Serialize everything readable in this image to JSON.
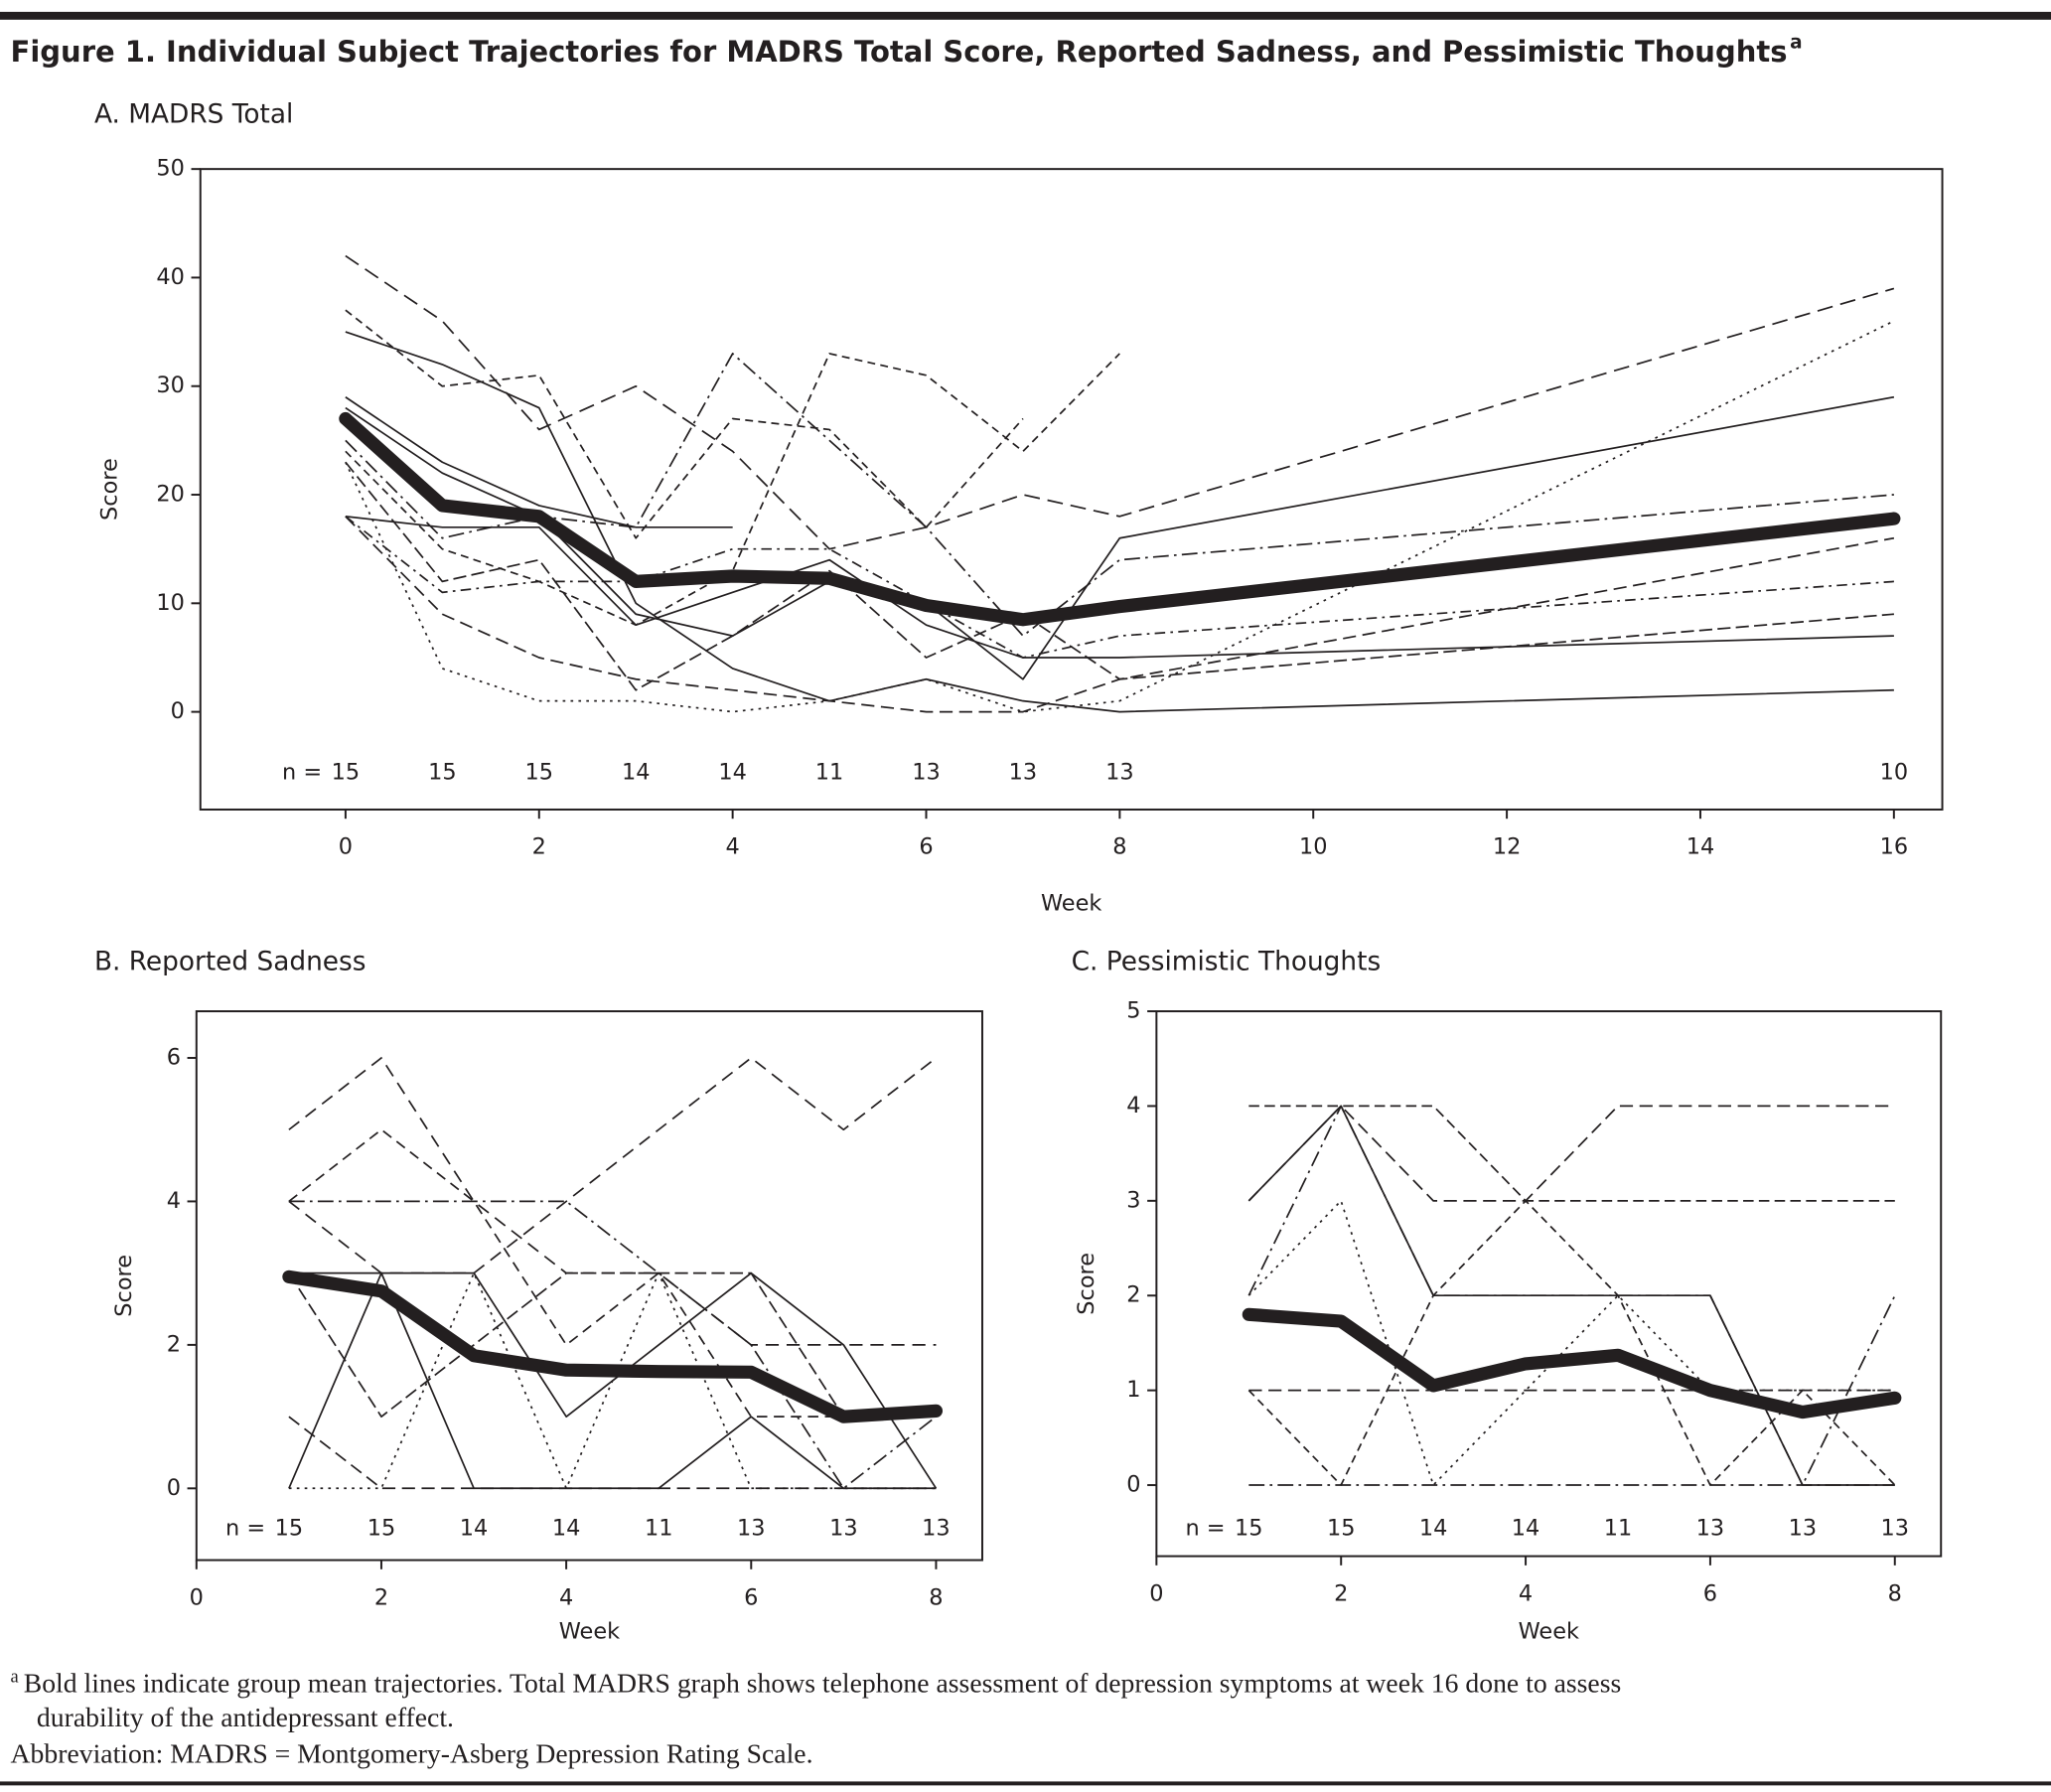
{
  "title": "Figure 1. Individual Subject Trajectories for MADRS Total Score, Reported Sadness, and Pessimistic Thoughts",
  "title_mark": "a",
  "footnote_mark": "a",
  "footnote": [
    "Bold lines indicate group mean trajectories. Total MADRS graph shows telephone assessment of depression symptoms at week 16 done to assess",
    "durability of the antidepressant effect."
  ],
  "abbreviation": "Abbreviation: MADRS = Montgomery-Asberg Depression Rating Scale.",
  "chart_data": [
    {
      "type": "line",
      "subtitle": "A. MADRS Total",
      "xlabel": "Week",
      "ylabel": "Score",
      "x": [
        0,
        1,
        2,
        3,
        4,
        5,
        6,
        7,
        8,
        16
      ],
      "xlim": [
        -1.5,
        16.5
      ],
      "ylim": [
        -9,
        50
      ],
      "xticks": [
        0,
        2,
        4,
        6,
        8,
        10,
        12,
        14,
        16
      ],
      "yticks": [
        0,
        10,
        20,
        30,
        40,
        50
      ],
      "n_label": "n =",
      "n": [
        15,
        15,
        15,
        14,
        14,
        11,
        13,
        13,
        13,
        10
      ],
      "series": [
        {
          "color": "#231f20",
          "dash": "12 6",
          "values": [
            42,
            36,
            26,
            30,
            24,
            15,
            17,
            20,
            18,
            39
          ]
        },
        {
          "color": "#231f20",
          "dash": "6 4",
          "values": [
            37,
            30,
            31,
            16,
            27,
            26,
            17,
            27,
            null,
            null
          ]
        },
        {
          "color": "#231f20",
          "dash": "none",
          "values": [
            35,
            32,
            28,
            10,
            4,
            1,
            3,
            1,
            0,
            2
          ]
        },
        {
          "color": "#231f20",
          "dash": "none",
          "values": [
            29,
            23,
            19,
            17,
            17,
            null,
            null,
            null,
            null,
            null
          ]
        },
        {
          "color": "#231f20",
          "dash": "12 4 2 4",
          "values": [
            25,
            16,
            18,
            17,
            33,
            25,
            17,
            7,
            14,
            20
          ]
        },
        {
          "color": "#231f20",
          "dash": "2 4",
          "values": [
            23,
            4,
            1,
            1,
            0,
            1,
            3,
            0,
            1,
            36
          ]
        },
        {
          "color": "#231f20",
          "dash": "10 5",
          "values": [
            18,
            9,
            5,
            3,
            2,
            1,
            0,
            0,
            3,
            16
          ]
        },
        {
          "color": "#231f20",
          "dash": "none",
          "values": [
            28,
            22,
            18,
            9,
            7,
            12,
            10,
            3,
            16,
            29
          ]
        },
        {
          "color": "#231f20",
          "dash": "8 4 2 4",
          "values": [
            18,
            11,
            12,
            12,
            15,
            15,
            10,
            5,
            7,
            12
          ]
        },
        {
          "color": "#231f20",
          "dash": "6 4",
          "values": [
            24,
            15,
            12,
            8,
            13,
            33,
            31,
            24,
            33,
            null
          ]
        },
        {
          "color": "#231f20",
          "dash": "none",
          "values": [
            18,
            17,
            17,
            8,
            11,
            14,
            8,
            5,
            5,
            7
          ]
        },
        {
          "color": "#231f20",
          "dash": "10 4",
          "values": [
            23,
            12,
            14,
            2,
            7,
            13,
            5,
            9,
            3,
            9
          ]
        },
        {
          "color": "#231f20",
          "dash": "none",
          "width": 10,
          "values": [
            27,
            19,
            18,
            12,
            12.5,
            12.3,
            9.8,
            8.5,
            9.7,
            17.8
          ]
        }
      ]
    },
    {
      "type": "line",
      "subtitle": "B. Reported Sadness",
      "xlabel": "Week",
      "ylabel": "Score",
      "x": [
        1,
        2,
        3,
        4,
        5,
        6,
        7,
        8
      ],
      "xlim": [
        0,
        8.5
      ],
      "ylim": [
        -1,
        6.65
      ],
      "xticks": [
        0,
        2,
        4,
        6,
        8
      ],
      "yticks": [
        0,
        2,
        4,
        6
      ],
      "n_label": "n =",
      "n": [
        15,
        15,
        14,
        14,
        11,
        13,
        13,
        13
      ],
      "series": [
        {
          "color": "#231f20",
          "dash": "10 6",
          "values": [
            5,
            6,
            4,
            3,
            3,
            2,
            2,
            2
          ]
        },
        {
          "color": "#231f20",
          "dash": "10 6",
          "values": [
            4,
            3,
            3,
            4,
            5,
            6,
            5,
            6
          ]
        },
        {
          "color": "#231f20",
          "dash": "8 5",
          "values": [
            4,
            5,
            4,
            2,
            3,
            1,
            1,
            1
          ]
        },
        {
          "color": "#231f20",
          "dash": "none",
          "values": [
            0,
            3,
            0,
            0,
            0,
            1,
            0,
            0
          ]
        },
        {
          "color": "#231f20",
          "dash": "12 4 2 4",
          "values": [
            4,
            4,
            4,
            4,
            3,
            2,
            0,
            1
          ]
        },
        {
          "color": "#231f20",
          "dash": "2 4",
          "values": [
            0,
            0,
            3,
            0,
            3,
            0,
            0,
            0
          ]
        },
        {
          "color": "#231f20",
          "dash": "10 5",
          "values": [
            1,
            0,
            0,
            0,
            0,
            0,
            0,
            0
          ]
        },
        {
          "color": "#231f20",
          "dash": "none",
          "values": [
            3,
            3,
            3,
            1,
            2,
            3,
            2,
            0
          ]
        },
        {
          "color": "#231f20",
          "dash": "10 4",
          "values": [
            3,
            1,
            2,
            3,
            3,
            3,
            1,
            1
          ]
        },
        {
          "color": "#231f20",
          "dash": "none",
          "width": 10,
          "values": [
            2.95,
            2.75,
            1.85,
            1.65,
            1.63,
            1.62,
            1.0,
            1.08
          ]
        }
      ]
    },
    {
      "type": "line",
      "subtitle": "C. Pessimistic Thoughts",
      "xlabel": "Week",
      "ylabel": "Score",
      "x": [
        1,
        2,
        3,
        4,
        5,
        6,
        7,
        8
      ],
      "xlim": [
        0,
        8.5
      ],
      "ylim": [
        -0.75,
        5
      ],
      "xticks": [
        0,
        2,
        4,
        6,
        8
      ],
      "yticks": [
        0,
        1,
        2,
        3,
        4,
        5
      ],
      "n_label": "n =",
      "n": [
        15,
        15,
        14,
        14,
        11,
        13,
        13,
        13
      ],
      "series": [
        {
          "color": "#231f20",
          "dash": "8 4",
          "values": [
            4,
            4,
            4,
            3,
            3,
            3,
            3,
            3
          ]
        },
        {
          "color": "#231f20",
          "dash": "10 5",
          "values": [
            3,
            4,
            3,
            3,
            4,
            4,
            4,
            4
          ]
        },
        {
          "color": "#231f20",
          "dash": "none",
          "values": [
            3,
            4,
            2,
            2,
            2,
            2,
            0,
            0
          ]
        },
        {
          "color": "#231f20",
          "dash": "12 4 2 4",
          "values": [
            2,
            4,
            2,
            2,
            2,
            2,
            0,
            2
          ]
        },
        {
          "color": "#231f20",
          "dash": "2 4",
          "values": [
            2,
            3,
            0,
            1,
            2,
            1,
            1,
            1
          ]
        },
        {
          "color": "#231f20",
          "dash": "6 4",
          "values": [
            1,
            0,
            2,
            3,
            2,
            0,
            1,
            0
          ]
        },
        {
          "color": "#231f20",
          "dash": "10 5",
          "values": [
            1,
            1,
            1,
            1,
            1,
            1,
            1,
            1
          ]
        },
        {
          "color": "#231f20",
          "dash": "12 4 2 4",
          "values": [
            0,
            0,
            0,
            0,
            0,
            0,
            0,
            0
          ]
        },
        {
          "color": "#231f20",
          "dash": "none",
          "width": 10,
          "values": [
            1.8,
            1.73,
            1.05,
            1.28,
            1.37,
            1.0,
            0.77,
            0.92
          ]
        }
      ]
    }
  ]
}
